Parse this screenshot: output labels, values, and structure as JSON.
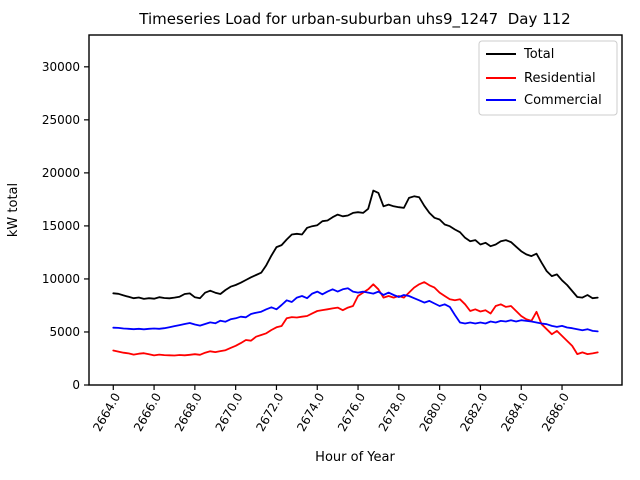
{
  "chart_data": {
    "type": "line",
    "title": "Timeseries Load for urban-suburban uhs9_1247  Day 112",
    "xlabel": "Hour of Year",
    "ylabel": "kW total",
    "xlim": [
      2662.81,
      2688.94
    ],
    "ylim": [
      0,
      33000
    ],
    "grid": false,
    "legend_position": "upper right",
    "x_start": 2664.0,
    "x_step": 0.25,
    "xticks": [
      2664,
      2666,
      2668,
      2670,
      2672,
      2674,
      2676,
      2678,
      2680,
      2682,
      2684,
      2686
    ],
    "xtick_labels": [
      "2664.0",
      "2666.0",
      "2668.0",
      "2670.0",
      "2672.0",
      "2674.0",
      "2676.0",
      "2678.0",
      "2680.0",
      "2682.0",
      "2684.0",
      "2686.0"
    ],
    "yticks": [
      0,
      5000,
      10000,
      15000,
      20000,
      25000,
      30000
    ],
    "ytick_labels": [
      "0",
      "5000",
      "10000",
      "15000",
      "20000",
      "25000",
      "30000"
    ],
    "series": [
      {
        "name": "Total",
        "color": "#000000",
        "values": [
          8650,
          8600,
          8450,
          8320,
          8180,
          8250,
          8120,
          8180,
          8140,
          8280,
          8200,
          8175,
          8240,
          8330,
          8580,
          8640,
          8270,
          8180,
          8700,
          8890,
          8700,
          8580,
          8960,
          9270,
          9430,
          9650,
          9900,
          10150,
          10370,
          10590,
          11300,
          12200,
          13000,
          13190,
          13720,
          14190,
          14260,
          14190,
          14820,
          14970,
          15070,
          15440,
          15510,
          15820,
          16070,
          15910,
          15980,
          16230,
          16290,
          16230,
          16610,
          18330,
          18110,
          16850,
          17010,
          16850,
          16760,
          16700,
          17640,
          17790,
          17700,
          16900,
          16230,
          15760,
          15600,
          15130,
          14970,
          14660,
          14410,
          13880,
          13560,
          13660,
          13250,
          13410,
          13090,
          13250,
          13560,
          13660,
          13470,
          13040,
          12620,
          12310,
          12150,
          12380,
          11530,
          10740,
          10270,
          10430,
          9870,
          9430,
          8860,
          8300,
          8240,
          8490,
          8180,
          8240
        ]
      },
      {
        "name": "Residential",
        "color": "#ff0000",
        "values": [
          3250,
          3150,
          3050,
          2980,
          2870,
          2950,
          3000,
          2890,
          2790,
          2870,
          2820,
          2800,
          2780,
          2830,
          2800,
          2850,
          2900,
          2850,
          3050,
          3180,
          3100,
          3200,
          3280,
          3500,
          3700,
          3950,
          4240,
          4180,
          4550,
          4710,
          4870,
          5190,
          5440,
          5560,
          6300,
          6400,
          6360,
          6440,
          6510,
          6750,
          6980,
          7060,
          7140,
          7220,
          7300,
          7050,
          7300,
          7450,
          8390,
          8710,
          9020,
          9490,
          9020,
          8240,
          8390,
          8240,
          8390,
          8240,
          8710,
          9180,
          9490,
          9700,
          9400,
          9180,
          8710,
          8390,
          8080,
          8000,
          8080,
          7610,
          6980,
          7140,
          6930,
          7050,
          6740,
          7450,
          7610,
          7360,
          7450,
          6980,
          6510,
          6200,
          6040,
          6900,
          5730,
          5260,
          4790,
          5100,
          4630,
          4160,
          3690,
          2910,
          3070,
          2910,
          2980,
          3070
        ]
      },
      {
        "name": "Commercial",
        "color": "#0000ff",
        "values": [
          5400,
          5380,
          5330,
          5300,
          5260,
          5300,
          5250,
          5300,
          5330,
          5300,
          5360,
          5450,
          5550,
          5650,
          5750,
          5850,
          5700,
          5600,
          5750,
          5900,
          5820,
          6060,
          5970,
          6195,
          6290,
          6440,
          6380,
          6695,
          6820,
          6915,
          7140,
          7325,
          7140,
          7540,
          7990,
          7830,
          8240,
          8390,
          8180,
          8620,
          8810,
          8550,
          8810,
          9020,
          8810,
          9020,
          9120,
          8810,
          8710,
          8810,
          8710,
          8620,
          8810,
          8490,
          8710,
          8490,
          8300,
          8490,
          8390,
          8180,
          7990,
          7770,
          7930,
          7680,
          7450,
          7610,
          7360,
          6600,
          5890,
          5800,
          5890,
          5800,
          5890,
          5800,
          5990,
          5890,
          6040,
          5990,
          6110,
          5990,
          6110,
          6040,
          5990,
          5890,
          5800,
          5730,
          5570,
          5480,
          5570,
          5420,
          5360,
          5260,
          5170,
          5260,
          5100,
          5050
        ]
      }
    ]
  }
}
